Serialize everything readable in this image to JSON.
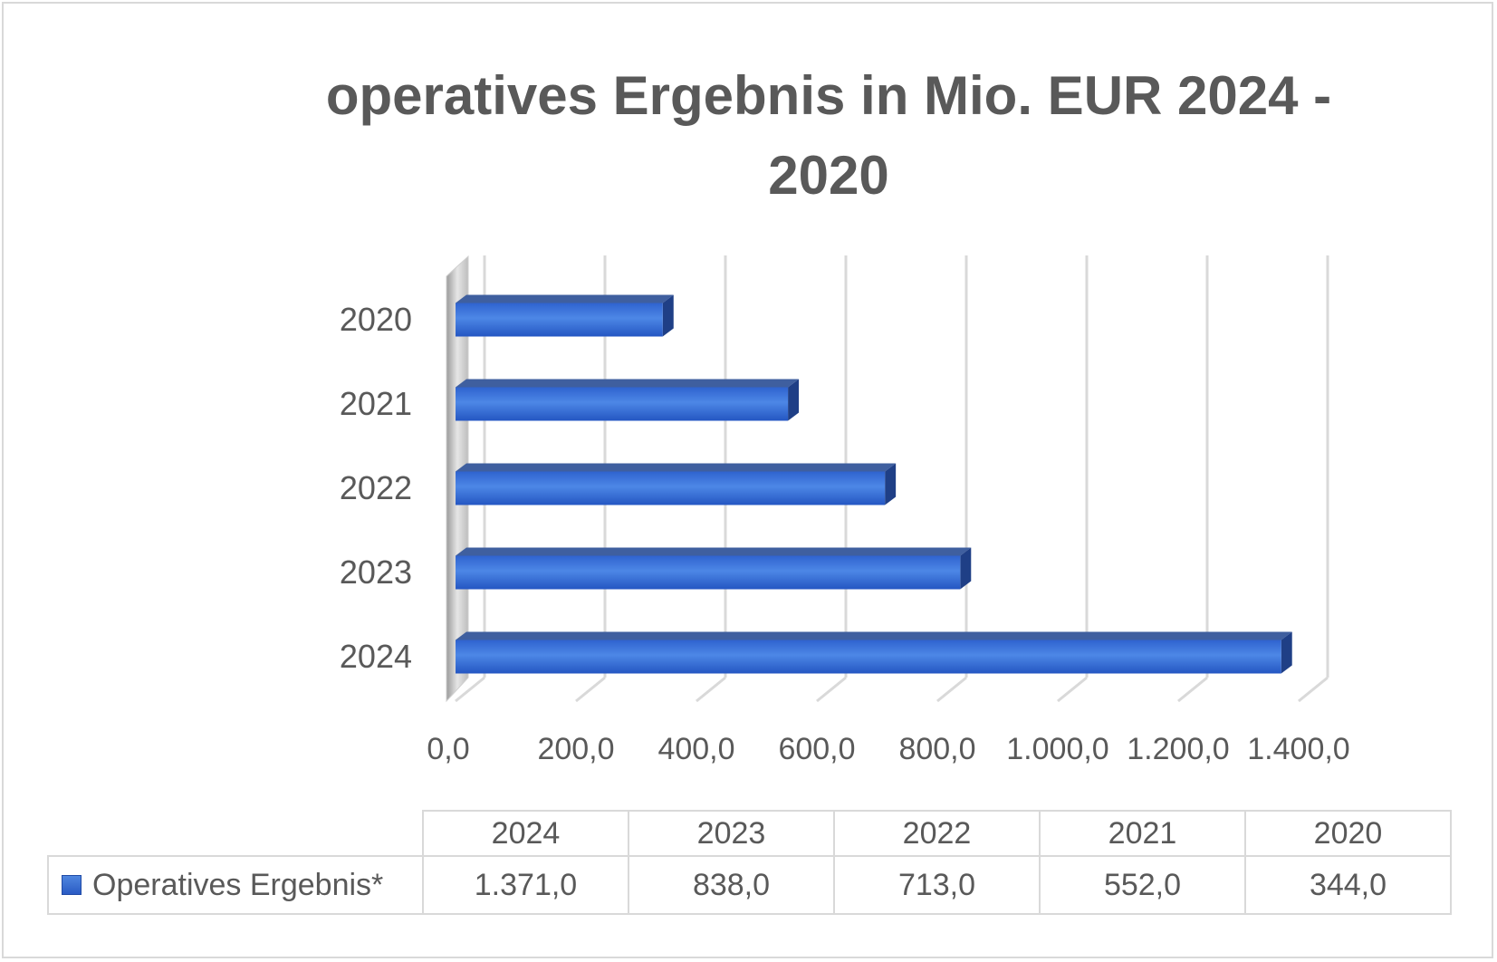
{
  "chart_data": {
    "type": "bar",
    "orientation": "horizontal",
    "style": "3d",
    "title": "operatives Ergebnis in Mio. EUR 2024 - 2020",
    "categories": [
      "2024",
      "2023",
      "2022",
      "2021",
      "2020"
    ],
    "series": [
      {
        "name": "Operatives Ergebnis*",
        "values": [
          1371.0,
          838.0,
          713.0,
          552.0,
          344.0
        ],
        "color": "#3a6fd6"
      }
    ],
    "x_ticks": [
      "0,0",
      "200,0",
      "400,0",
      "600,0",
      "800,0",
      "1.000,0",
      "1.200,0",
      "1.400,0"
    ],
    "xlim": [
      0,
      1400
    ],
    "grid": true,
    "legend": "data-table",
    "data_table": {
      "headers": [
        "2024",
        "2023",
        "2022",
        "2021",
        "2020"
      ],
      "row_label": "Operatives Ergebnis*",
      "row_values": [
        "1.371,0",
        "838,0",
        "713,0",
        "552,0",
        "344,0"
      ]
    }
  }
}
